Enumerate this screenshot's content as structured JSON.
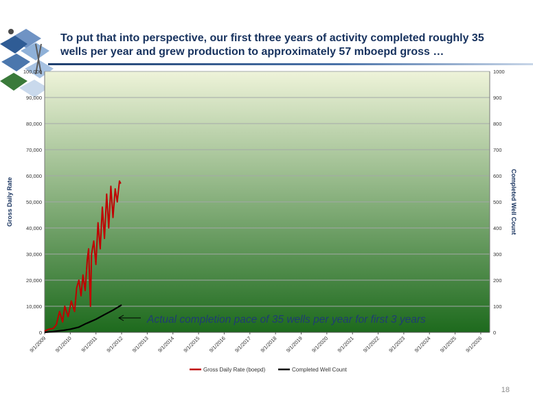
{
  "slide": {
    "title": "To put that into perspective, our first three years of activity completed roughly 35 wells per year and grew production to approximately 57 mboepd gross …",
    "page_number": "18"
  },
  "colors": {
    "title": "#17325e",
    "plot_top": "#eef3d9",
    "plot_bottom": "#1d6a1d",
    "gross_rate_series": "#c00000",
    "well_count_series": "#000000",
    "annotation": "#1f3c73"
  },
  "chart_data": {
    "type": "line",
    "ylabel": "Gross Daily Rate",
    "y2label": "Completed Well Count",
    "ylim": [
      0,
      100000
    ],
    "y2lim": [
      0,
      1000
    ],
    "grid": true,
    "legend_position": "bottom",
    "y_ticks": [
      "0",
      "10,000",
      "20,000",
      "30,000",
      "40,000",
      "50,000",
      "60,000",
      "70,000",
      "80,000",
      "90,000",
      "100,000"
    ],
    "y2_ticks": [
      "0",
      "100",
      "200",
      "300",
      "400",
      "500",
      "600",
      "700",
      "800",
      "900",
      "1000"
    ],
    "x_ticks": [
      "9/1/2009",
      "9/1/2010",
      "9/1/2011",
      "9/1/2012",
      "9/1/2013",
      "9/1/2014",
      "9/1/2015",
      "9/1/2016",
      "9/1/2017",
      "9/1/2018",
      "9/1/2019",
      "9/1/2020",
      "9/1/2021",
      "9/1/2022",
      "9/1/2023",
      "9/1/2024",
      "9/1/2025",
      "9/1/2026"
    ],
    "annotation": "Actual completion pace of 35 wells per year for first 3 years",
    "series": [
      {
        "name": "Gross Daily Rate (boepd)",
        "axis": "left",
        "points": [
          [
            "2009-09-01",
            500
          ],
          [
            "2009-11-01",
            1200
          ],
          [
            "2010-01-01",
            1500
          ],
          [
            "2010-02-15",
            3000
          ],
          [
            "2010-04-01",
            8000
          ],
          [
            "2010-05-15",
            4000
          ],
          [
            "2010-06-15",
            10000
          ],
          [
            "2010-08-01",
            6000
          ],
          [
            "2010-09-15",
            12000
          ],
          [
            "2010-11-01",
            8000
          ],
          [
            "2010-12-01",
            17000
          ],
          [
            "2011-01-01",
            20000
          ],
          [
            "2011-02-01",
            14000
          ],
          [
            "2011-03-01",
            22000
          ],
          [
            "2011-04-01",
            16000
          ],
          [
            "2011-05-01",
            28000
          ],
          [
            "2011-05-20",
            32000
          ],
          [
            "2011-06-15",
            10000
          ],
          [
            "2011-07-01",
            30000
          ],
          [
            "2011-08-01",
            35000
          ],
          [
            "2011-09-01",
            26000
          ],
          [
            "2011-10-01",
            42000
          ],
          [
            "2011-11-01",
            32000
          ],
          [
            "2011-12-01",
            48000
          ],
          [
            "2012-01-01",
            36000
          ],
          [
            "2012-02-01",
            53000
          ],
          [
            "2012-03-01",
            40000
          ],
          [
            "2012-04-01",
            56000
          ],
          [
            "2012-05-01",
            44000
          ],
          [
            "2012-06-01",
            55000
          ],
          [
            "2012-07-01",
            50000
          ],
          [
            "2012-08-01",
            58000
          ],
          [
            "2012-08-20",
            57000
          ]
        ]
      },
      {
        "name": "Completed Well Count",
        "axis": "right",
        "points": [
          [
            "2009-09-01",
            0
          ],
          [
            "2010-01-01",
            3
          ],
          [
            "2010-06-01",
            8
          ],
          [
            "2010-09-01",
            12
          ],
          [
            "2011-01-01",
            20
          ],
          [
            "2011-04-01",
            32
          ],
          [
            "2011-09-01",
            50
          ],
          [
            "2012-01-01",
            68
          ],
          [
            "2012-05-01",
            85
          ],
          [
            "2012-09-01",
            105
          ]
        ]
      }
    ]
  }
}
